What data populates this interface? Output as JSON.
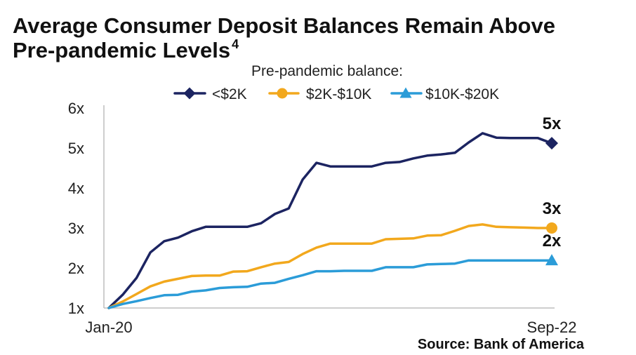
{
  "chart_data": {
    "type": "line",
    "title": "Average Consumer Deposit Balances Remain Above Pre-pandemic Levels",
    "title_footnote": "4",
    "legend": {
      "title": "Pre-pandemic balance:",
      "position": "top"
    },
    "x_ticks": [
      "Jan-20",
      "Sep-22"
    ],
    "y_ticks": {
      "values": [
        1,
        2,
        3,
        4,
        5,
        6
      ],
      "labels": [
        "1x",
        "2x",
        "3x",
        "4x",
        "5x",
        "6x"
      ]
    },
    "ylim": [
      1,
      6
    ],
    "grid": false,
    "series": [
      {
        "name": "<$2K",
        "color": "#1c2461",
        "marker": "diamond",
        "end_label": "5x",
        "values": [
          1.0,
          1.33,
          1.75,
          2.39,
          2.67,
          2.76,
          2.92,
          3.03,
          3.03,
          3.03,
          3.03,
          3.12,
          3.35,
          3.49,
          4.21,
          4.63,
          4.54,
          4.54,
          4.54,
          4.54,
          4.63,
          4.65,
          4.74,
          4.81,
          4.84,
          4.88,
          5.14,
          5.37,
          5.26,
          5.25,
          5.25,
          5.25,
          5.12
        ]
      },
      {
        "name": "$2K-$10K",
        "color": "#f2a81d",
        "marker": "circle",
        "end_label": "3x",
        "values": [
          1.0,
          1.16,
          1.35,
          1.54,
          1.66,
          1.73,
          1.8,
          1.81,
          1.81,
          1.91,
          1.92,
          2.02,
          2.11,
          2.15,
          2.35,
          2.51,
          2.61,
          2.61,
          2.61,
          2.61,
          2.72,
          2.73,
          2.74,
          2.81,
          2.82,
          2.93,
          3.05,
          3.09,
          3.03,
          3.02,
          3.01,
          3.0,
          3.0
        ]
      },
      {
        "name": "$10K-$20K",
        "color": "#2b9cd8",
        "marker": "triangle",
        "end_label": "2x",
        "values": [
          1.0,
          1.1,
          1.17,
          1.25,
          1.32,
          1.33,
          1.41,
          1.44,
          1.5,
          1.52,
          1.53,
          1.61,
          1.63,
          1.73,
          1.82,
          1.92,
          1.92,
          1.93,
          1.93,
          1.93,
          2.02,
          2.02,
          2.02,
          2.09,
          2.1,
          2.11,
          2.19,
          2.19,
          2.19,
          2.19,
          2.19,
          2.19,
          2.19
        ]
      }
    ]
  },
  "source": "Source: Bank of America"
}
